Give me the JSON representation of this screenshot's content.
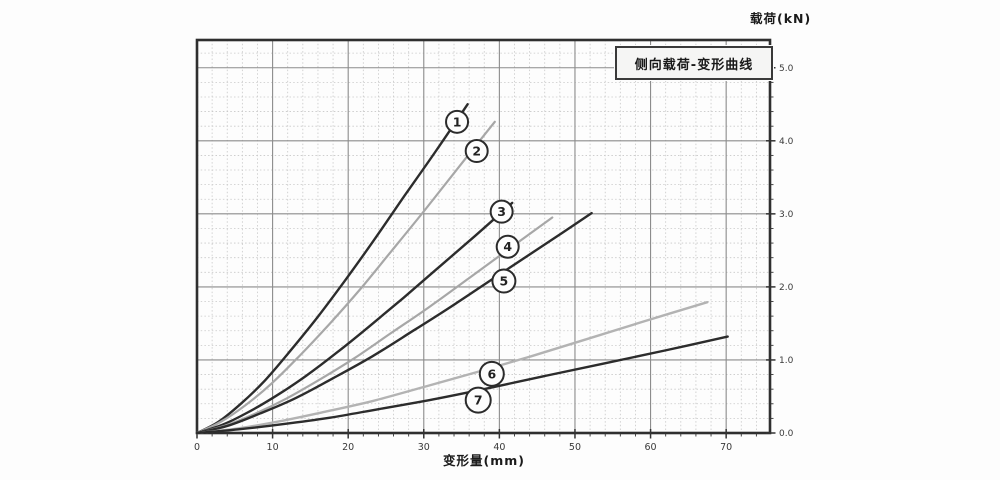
{
  "chart_data": {
    "type": "line",
    "title": "侧向载荷-变形曲线",
    "xlabel": "变形量(mm)",
    "ylabel": "载荷(kN)",
    "xlim": [
      0,
      75.8
    ],
    "ylim": [
      0,
      5.38
    ],
    "grid": true,
    "legend_position": "none",
    "x_minor_step": 2,
    "y_minor_step": 0.2,
    "x_ticks": [
      {
        "value": 0,
        "label": "0"
      },
      {
        "value": 10,
        "label": "10"
      },
      {
        "value": 20,
        "label": "20"
      },
      {
        "value": 30,
        "label": "30"
      },
      {
        "value": 40,
        "label": "40"
      },
      {
        "value": 50,
        "label": "50"
      },
      {
        "value": 60,
        "label": "60"
      },
      {
        "value": 70,
        "label": "70"
      }
    ],
    "y_ticks": [
      {
        "value": 0,
        "label": "0.0"
      },
      {
        "value": 1,
        "label": "1.0"
      },
      {
        "value": 2,
        "label": "2.0"
      },
      {
        "value": 3,
        "label": "3.0"
      },
      {
        "value": 4,
        "label": "4.0"
      },
      {
        "value": 5,
        "label": "5.0"
      }
    ],
    "series": [
      {
        "name": "1",
        "color": "#2c2c2c",
        "width": 2.4,
        "label_at": [
          34.4,
          4.26
        ],
        "label_r": 11,
        "points": [
          [
            0,
            0
          ],
          [
            2.8,
            0.15
          ],
          [
            5.8,
            0.4
          ],
          [
            9.0,
            0.72
          ],
          [
            12.3,
            1.12
          ],
          [
            15.9,
            1.58
          ],
          [
            19.6,
            2.09
          ],
          [
            23.4,
            2.64
          ],
          [
            27.4,
            3.24
          ],
          [
            31.6,
            3.86
          ],
          [
            35.8,
            4.5
          ]
        ]
      },
      {
        "name": "2",
        "color": "#a7a7a7",
        "width": 2.2,
        "label_at": [
          37.0,
          3.86
        ],
        "label_r": 11,
        "points": [
          [
            0,
            0
          ],
          [
            3.1,
            0.15
          ],
          [
            6.4,
            0.38
          ],
          [
            9.9,
            0.68
          ],
          [
            13.6,
            1.06
          ],
          [
            17.5,
            1.49
          ],
          [
            21.6,
            1.97
          ],
          [
            25.8,
            2.5
          ],
          [
            30.2,
            3.06
          ],
          [
            34.7,
            3.65
          ],
          [
            39.4,
            4.26
          ]
        ]
      },
      {
        "name": "3",
        "color": "#2c2c2c",
        "width": 2.4,
        "label_at": [
          40.3,
          3.03
        ],
        "label_r": 11,
        "points": [
          [
            0,
            0
          ],
          [
            3.3,
            0.11
          ],
          [
            6.7,
            0.28
          ],
          [
            10.5,
            0.51
          ],
          [
            14.4,
            0.78
          ],
          [
            18.5,
            1.1
          ],
          [
            22.8,
            1.46
          ],
          [
            27.3,
            1.85
          ],
          [
            32.0,
            2.27
          ],
          [
            36.8,
            2.7
          ],
          [
            41.7,
            3.15
          ]
        ]
      },
      {
        "name": "4",
        "color": "#a7a7a7",
        "width": 2.2,
        "label_at": [
          41.1,
          2.55
        ],
        "label_r": 11,
        "points": [
          [
            0,
            0
          ],
          [
            3.7,
            0.1
          ],
          [
            7.6,
            0.26
          ],
          [
            11.8,
            0.47
          ],
          [
            16.2,
            0.73
          ],
          [
            20.9,
            1.03
          ],
          [
            25.7,
            1.37
          ],
          [
            30.8,
            1.73
          ],
          [
            36.0,
            2.12
          ],
          [
            41.4,
            2.53
          ],
          [
            47.0,
            2.95
          ]
        ]
      },
      {
        "name": "5",
        "color": "#2c2c2c",
        "width": 2.4,
        "label_at": [
          40.6,
          2.08
        ],
        "label_r": 11.5,
        "points": [
          [
            0,
            0
          ],
          [
            4.1,
            0.1
          ],
          [
            8.4,
            0.27
          ],
          [
            13.1,
            0.48
          ],
          [
            18.0,
            0.75
          ],
          [
            23.2,
            1.05
          ],
          [
            28.6,
            1.4
          ],
          [
            34.2,
            1.77
          ],
          [
            40.0,
            2.17
          ],
          [
            46.0,
            2.58
          ],
          [
            52.2,
            3.01
          ]
        ]
      },
      {
        "name": "6",
        "color": "#b3b3b3",
        "width": 2.4,
        "label_at": [
          39.0,
          0.81
        ],
        "label_r": 12,
        "points": [
          [
            0,
            0
          ],
          [
            5.3,
            0.06
          ],
          [
            10.9,
            0.16
          ],
          [
            16.9,
            0.29
          ],
          [
            23.3,
            0.44
          ],
          [
            30.0,
            0.63
          ],
          [
            36.9,
            0.83
          ],
          [
            44.2,
            1.05
          ],
          [
            51.7,
            1.29
          ],
          [
            59.5,
            1.54
          ],
          [
            67.5,
            1.79
          ]
        ]
      },
      {
        "name": "7",
        "color": "#2c2c2c",
        "width": 2.4,
        "label_at": [
          37.2,
          0.45
        ],
        "label_r": 12.5,
        "points": [
          [
            0,
            0
          ],
          [
            5.5,
            0.05
          ],
          [
            11.3,
            0.12
          ],
          [
            17.6,
            0.21
          ],
          [
            24.2,
            0.33
          ],
          [
            31.2,
            0.46
          ],
          [
            38.4,
            0.61
          ],
          [
            46.0,
            0.78
          ],
          [
            53.8,
            0.95
          ],
          [
            61.9,
            1.13
          ],
          [
            70.2,
            1.32
          ]
        ]
      }
    ]
  },
  "colors": {
    "grid_minor": "#c8c8c8",
    "grid_major": "#8b8b8b",
    "frame": "#2f2f2f",
    "tick": "#333333",
    "tick_label": "#3a3a3a",
    "circle_fill": "#fdfdfd",
    "circle_stroke": "#2b2b2b",
    "circle_text": "#222222"
  }
}
